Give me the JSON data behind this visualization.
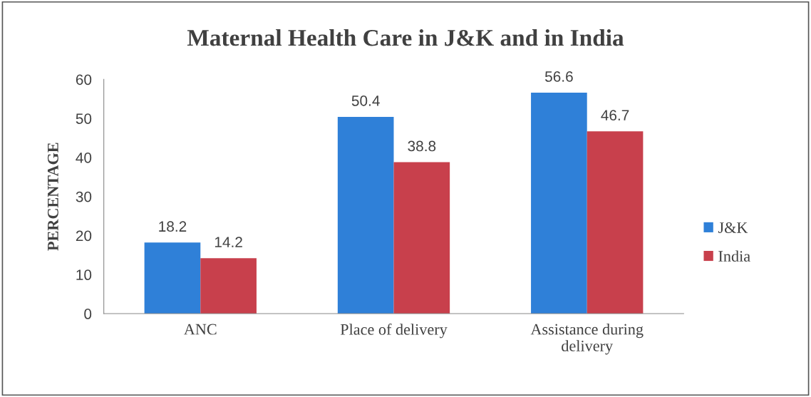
{
  "chart_data": {
    "type": "bar",
    "title": "Maternal Health Care in J&K and in India",
    "ylabel": "PERCENTAGE",
    "categories": [
      "ANC",
      "Place of delivery",
      "Assistance during\ndelivery"
    ],
    "series": [
      {
        "name": "J&K",
        "color": "#2f80d8",
        "values": [
          18.2,
          50.4,
          56.6
        ]
      },
      {
        "name": "India",
        "color": "#c8404c",
        "values": [
          14.2,
          38.8,
          46.7
        ]
      }
    ],
    "ylim": [
      0,
      60
    ],
    "yticks": [
      0,
      10,
      20,
      30,
      40,
      50,
      60
    ],
    "grid": false,
    "legend": "right",
    "data_labels": true
  }
}
